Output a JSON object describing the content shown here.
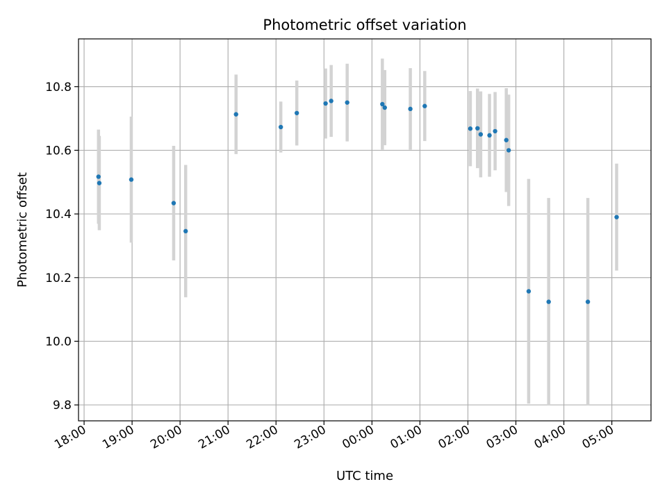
{
  "chart_data": {
    "type": "scatter",
    "title": "Photometric offset variation",
    "xlabel": "UTC time",
    "ylabel": "Photometric offset",
    "xlim": [
      "17:53",
      "05:49"
    ],
    "ylim": [
      9.75,
      10.95
    ],
    "grid": true,
    "x_ticks": [
      "18:00",
      "19:00",
      "20:00",
      "21:00",
      "22:00",
      "23:00",
      "00:00",
      "01:00",
      "02:00",
      "03:00",
      "04:00",
      "05:00"
    ],
    "y_ticks": [
      9.8,
      10.0,
      10.2,
      10.4,
      10.6,
      10.8
    ],
    "y_tick_labels": [
      "9.8",
      "10.0",
      "10.2",
      "10.4",
      "10.6",
      "10.8"
    ],
    "point_color": "#1f77b4",
    "errorbar_color": "#d3d3d3",
    "points": [
      {
        "x": "18:18",
        "y": 10.517,
        "err": 0.148
      },
      {
        "x": "18:19",
        "y": 10.497,
        "err": 0.148
      },
      {
        "x": "18:59",
        "y": 10.508,
        "err": 0.198
      },
      {
        "x": "19:52",
        "y": 10.434,
        "err": 0.18
      },
      {
        "x": "20:07",
        "y": 10.346,
        "err": 0.208
      },
      {
        "x": "21:10",
        "y": 10.713,
        "err": 0.125
      },
      {
        "x": "22:06",
        "y": 10.673,
        "err": 0.08
      },
      {
        "x": "22:26",
        "y": 10.717,
        "err": 0.102
      },
      {
        "x": "23:02",
        "y": 10.747,
        "err": 0.11
      },
      {
        "x": "23:09",
        "y": 10.755,
        "err": 0.113
      },
      {
        "x": "23:29",
        "y": 10.75,
        "err": 0.122
      },
      {
        "x": "00:13",
        "y": 10.745,
        "err": 0.143
      },
      {
        "x": "00:16",
        "y": 10.734,
        "err": 0.118
      },
      {
        "x": "00:48",
        "y": 10.73,
        "err": 0.128
      },
      {
        "x": "01:06",
        "y": 10.739,
        "err": 0.11
      },
      {
        "x": "02:03",
        "y": 10.668,
        "err": 0.118
      },
      {
        "x": "02:12",
        "y": 10.669,
        "err": 0.125
      },
      {
        "x": "02:16",
        "y": 10.65,
        "err": 0.135
      },
      {
        "x": "02:27",
        "y": 10.647,
        "err": 0.13
      },
      {
        "x": "02:34",
        "y": 10.66,
        "err": 0.123
      },
      {
        "x": "02:48",
        "y": 10.632,
        "err": 0.163
      },
      {
        "x": "02:51",
        "y": 10.6,
        "err": 0.175
      },
      {
        "x": "03:16",
        "y": 10.157,
        "err": 0.353
      },
      {
        "x": "03:41",
        "y": 10.124,
        "err": 0.326
      },
      {
        "x": "04:30",
        "y": 10.124,
        "err": 0.326
      },
      {
        "x": "05:06",
        "y": 10.39,
        "err": 0.168
      }
    ]
  }
}
